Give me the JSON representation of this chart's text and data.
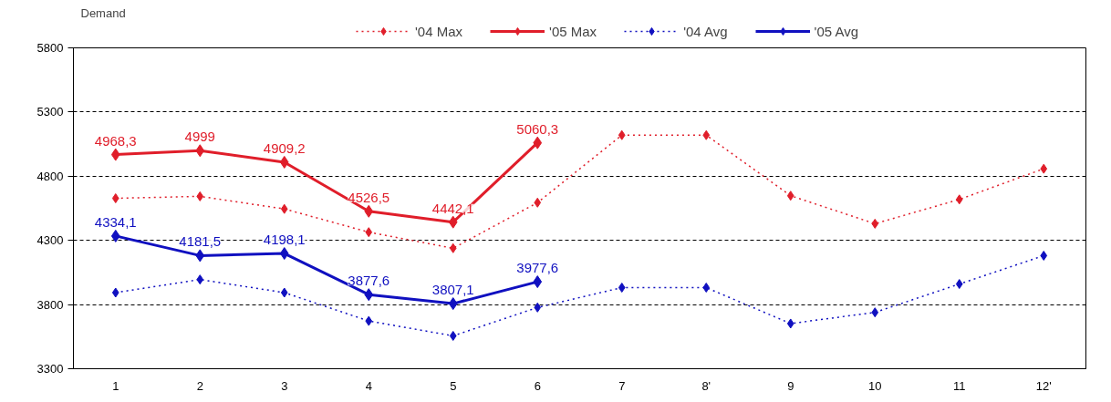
{
  "chart_data": {
    "type": "line",
    "ylabel": "Demand",
    "categories": [
      "1",
      "2",
      "3",
      "4",
      "5",
      "6",
      "7",
      "8'",
      "9",
      "10",
      "11",
      "12'"
    ],
    "ylim": [
      3300,
      5800
    ],
    "yticks": [
      3300,
      3800,
      4300,
      4800,
      5300,
      5800
    ],
    "grid": "y",
    "legend": "top",
    "series": [
      {
        "name": "'04 Max",
        "color": "#e01e2a",
        "line_style": "dotted",
        "marker": "diamond",
        "values": [
          4628,
          4643,
          4545,
          4364,
          4239,
          4594,
          5120,
          5120,
          4648,
          4430,
          4619,
          4858
        ]
      },
      {
        "name": "'05 Max",
        "color": "#e01e2a",
        "line_style": "solid",
        "marker": "diamond",
        "values": [
          4968.3,
          4999,
          4909.2,
          4526.5,
          4442.1,
          5060.3,
          null,
          null,
          null,
          null,
          null,
          null
        ],
        "value_labels": [
          "4968,3",
          "4999",
          "4909,2",
          "4526,5",
          "4442,1",
          "5060,3",
          null,
          null,
          null,
          null,
          null,
          null
        ]
      },
      {
        "name": "'04 Avg",
        "color": "#1010c0",
        "line_style": "dotted",
        "marker": "diamond",
        "values": [
          3893,
          3995,
          3893,
          3672,
          3556,
          3777,
          3932,
          3932,
          3652,
          3739,
          3960,
          4181
        ]
      },
      {
        "name": "'05 Avg",
        "color": "#1010c0",
        "line_style": "solid",
        "marker": "diamond",
        "values": [
          4334.1,
          4181.5,
          4198.1,
          3877.6,
          3807.1,
          3977.6,
          null,
          null,
          null,
          null,
          null,
          null
        ],
        "value_labels": [
          "4334,1",
          "4181,5",
          "4198,1",
          "3877,6",
          "3807,1",
          "3977,6",
          null,
          null,
          null,
          null,
          null,
          null
        ]
      }
    ]
  }
}
